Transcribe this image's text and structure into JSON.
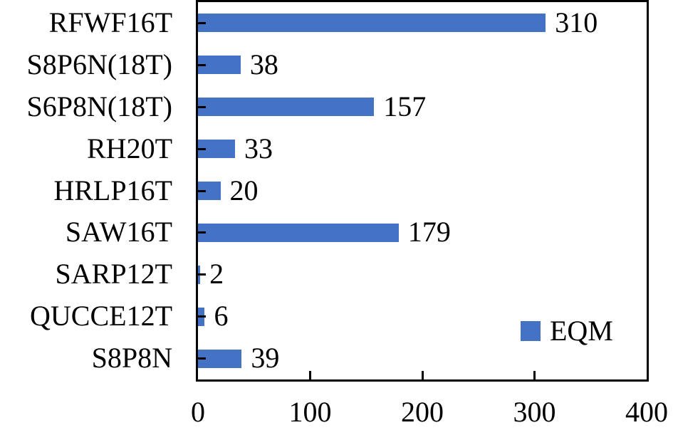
{
  "chart_data": {
    "type": "bar",
    "orientation": "horizontal",
    "categories": [
      "RFWF16T",
      "S8P6N(18T)",
      "S6P8N(18T)",
      "RH20T",
      "HRLP16T",
      "SAW16T",
      "SARP12T",
      "QUCCE12T",
      "S8P8N"
    ],
    "values": [
      310,
      38,
      157,
      33,
      20,
      179,
      2,
      6,
      39
    ],
    "series_name": "EQM",
    "title": "",
    "xlabel": "",
    "ylabel": "",
    "xlim": [
      0,
      400
    ],
    "x_ticks": [
      0,
      100,
      200,
      300,
      400
    ],
    "inner_x_ticks": [
      100,
      200,
      300
    ],
    "grid": "off",
    "data_labels_shown": true,
    "colors": {
      "bar": "#4472C4",
      "axis": "#000000",
      "text": "#000000",
      "background": "#ffffff"
    },
    "legend": {
      "label": "EQM",
      "position": "inside-right"
    }
  }
}
